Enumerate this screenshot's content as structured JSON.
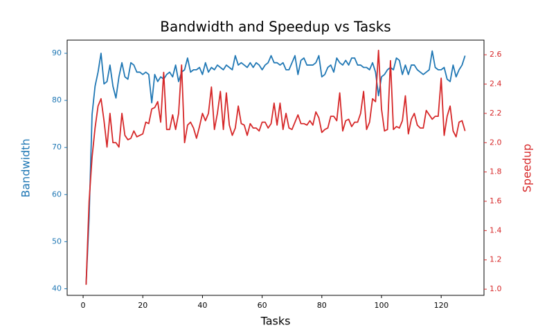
{
  "chart_data": {
    "type": "line",
    "title": "Bandwidth and Speedup vs Tasks",
    "x_label": "Tasks",
    "y_label": "Bandwidth",
    "y2_label": "Speedup",
    "x": [
      1,
      2,
      3,
      4,
      5,
      6,
      7,
      8,
      9,
      10,
      11,
      12,
      13,
      14,
      15,
      16,
      17,
      18,
      19,
      20,
      21,
      22,
      23,
      24,
      25,
      26,
      27,
      28,
      29,
      30,
      31,
      32,
      33,
      34,
      35,
      36,
      37,
      38,
      39,
      40,
      41,
      42,
      43,
      44,
      45,
      46,
      47,
      48,
      49,
      50,
      51,
      52,
      53,
      54,
      55,
      56,
      57,
      58,
      59,
      60,
      61,
      62,
      63,
      64,
      65,
      66,
      67,
      68,
      69,
      70,
      71,
      72,
      73,
      74,
      75,
      76,
      77,
      78,
      79,
      80,
      81,
      82,
      83,
      84,
      85,
      86,
      87,
      88,
      89,
      90,
      91,
      92,
      93,
      94,
      95,
      96,
      97,
      98,
      99,
      100,
      101,
      102,
      103,
      104,
      105,
      106,
      107,
      108,
      109,
      110,
      111,
      112,
      113,
      114,
      115,
      116,
      117,
      118,
      119,
      120,
      121,
      122,
      123,
      124,
      125,
      126,
      127,
      128
    ],
    "series": [
      {
        "name": "Bandwidth",
        "color": "#1f77b4",
        "axis": "y",
        "values": [
          41,
          55,
          77,
          83,
          86,
          90,
          83.5,
          84,
          87.5,
          83,
          80.5,
          85,
          88,
          85,
          84.5,
          88,
          87.5,
          86,
          86,
          85.5,
          86,
          85.5,
          79.5,
          85.5,
          84,
          85,
          84.5,
          85.5,
          86,
          85,
          87.5,
          84,
          86,
          86.5,
          89,
          86,
          86.5,
          86.5,
          87,
          85.5,
          88,
          86,
          87,
          86.5,
          87.5,
          87,
          86.5,
          87.5,
          87,
          86.5,
          89.5,
          87.5,
          88,
          87.5,
          87,
          88,
          87,
          88,
          87.5,
          86.5,
          87.5,
          88,
          89.5,
          88,
          88,
          87.5,
          88,
          86.5,
          86.5,
          88,
          89.5,
          85.5,
          88.5,
          89,
          87.5,
          87.5,
          87.5,
          88,
          89.5,
          85,
          85.5,
          87,
          87.5,
          86,
          89,
          88,
          87.5,
          88.5,
          87.5,
          89,
          89,
          87.5,
          87.5,
          87,
          87,
          86.5,
          88,
          86,
          81,
          85,
          85.5,
          86.5,
          87,
          86.5,
          89,
          88.5,
          85.5,
          87.5,
          85.5,
          87.5,
          87.5,
          86.5,
          86,
          85.5,
          86,
          86.5,
          90.5,
          87,
          86.5,
          86.5,
          87,
          84.5,
          84,
          87.5,
          85,
          86.5,
          87.5,
          89.5
        ]
      },
      {
        "name": "Speedup",
        "color": "#d62728",
        "axis": "y2",
        "values": [
          1.03,
          1.6,
          1.9,
          2.1,
          2.25,
          2.3,
          2.15,
          1.97,
          2.2,
          2.0,
          2.0,
          1.97,
          2.2,
          2.05,
          2.02,
          2.03,
          2.08,
          2.04,
          2.05,
          2.06,
          2.14,
          2.13,
          2.23,
          2.24,
          2.28,
          2.14,
          2.48,
          2.09,
          2.09,
          2.19,
          2.09,
          2.2,
          2.53,
          2.0,
          2.12,
          2.14,
          2.1,
          2.03,
          2.11,
          2.2,
          2.15,
          2.2,
          2.38,
          2.09,
          2.2,
          2.35,
          2.09,
          2.34,
          2.12,
          2.05,
          2.1,
          2.25,
          2.13,
          2.12,
          2.05,
          2.13,
          2.1,
          2.1,
          2.08,
          2.14,
          2.14,
          2.1,
          2.13,
          2.27,
          2.12,
          2.27,
          2.09,
          2.2,
          2.1,
          2.09,
          2.14,
          2.19,
          2.13,
          2.13,
          2.12,
          2.15,
          2.12,
          2.21,
          2.17,
          2.07,
          2.09,
          2.1,
          2.18,
          2.18,
          2.15,
          2.34,
          2.08,
          2.15,
          2.16,
          2.11,
          2.14,
          2.14,
          2.2,
          2.35,
          2.09,
          2.14,
          2.3,
          2.28,
          2.63,
          2.23,
          2.08,
          2.09,
          2.56,
          2.09,
          2.11,
          2.1,
          2.15,
          2.32,
          2.06,
          2.16,
          2.2,
          2.12,
          2.1,
          2.1,
          2.22,
          2.19,
          2.16,
          2.18,
          2.18,
          2.44,
          2.05,
          2.18,
          2.25,
          2.08,
          2.04,
          2.14,
          2.15,
          2.08
        ]
      }
    ],
    "xlim": [
      -5.35,
      134.35
    ],
    "xticks": [
      0,
      20,
      40,
      60,
      80,
      100,
      120
    ],
    "ylim": [
      38.6,
      92.8
    ],
    "yticks": [
      40,
      50,
      60,
      70,
      80,
      90
    ],
    "y2lim": [
      0.958,
      2.7
    ],
    "y2ticks": [
      {
        "value": 1,
        "label": "1.0"
      },
      1.2,
      1.4,
      1.6,
      1.8,
      {
        "value": 2,
        "label": "2.0"
      },
      2.2,
      2.4,
      2.6
    ]
  }
}
